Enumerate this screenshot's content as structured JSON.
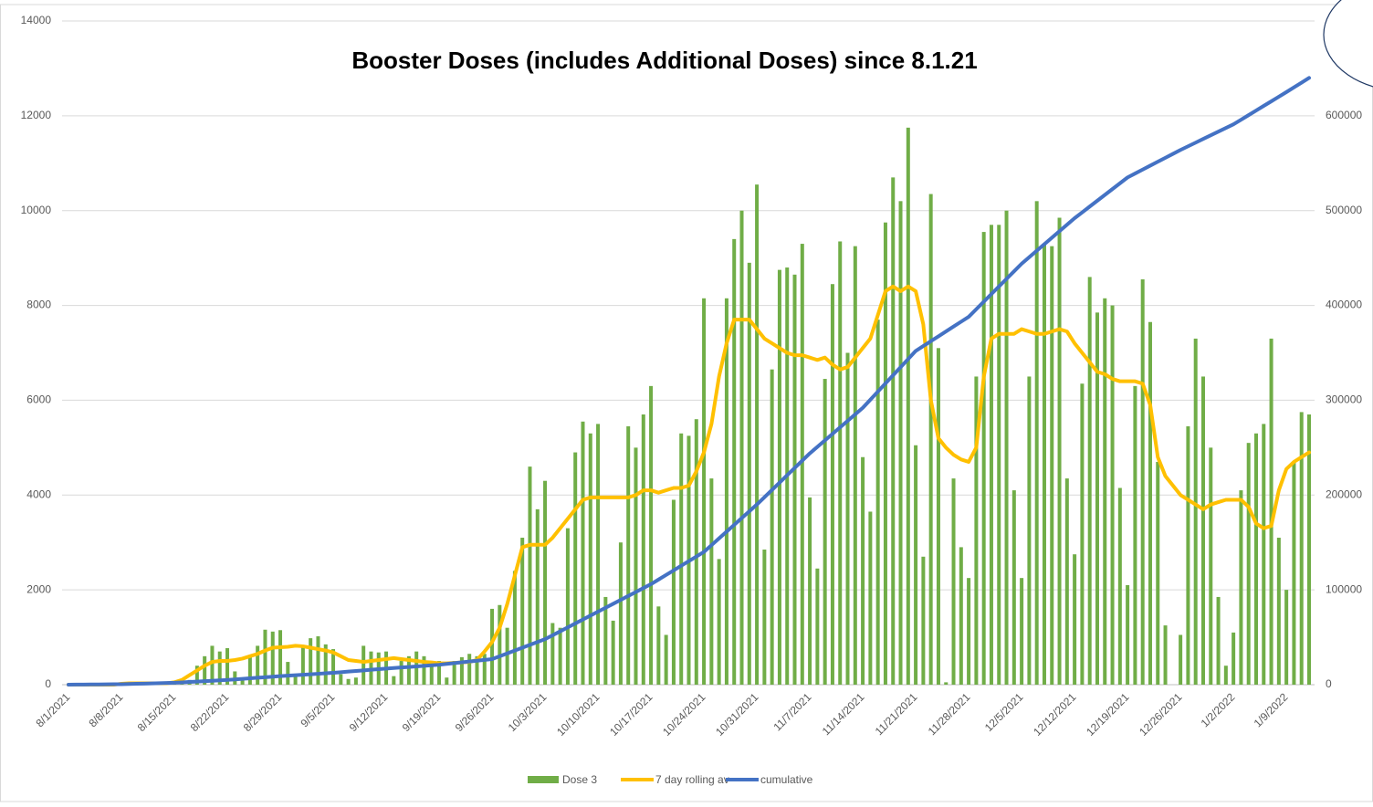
{
  "chart_data": {
    "type": "bar",
    "title": "Booster Doses (includes Additional Doses) since 8.1.21",
    "categories": [
      "8/1/2021",
      null,
      null,
      null,
      null,
      null,
      null,
      "8/8/2021",
      null,
      null,
      null,
      null,
      null,
      null,
      "8/15/2021",
      null,
      null,
      null,
      null,
      null,
      null,
      "8/22/2021",
      null,
      null,
      null,
      null,
      null,
      null,
      "8/29/2021",
      null,
      null,
      null,
      null,
      null,
      null,
      "9/5/2021",
      null,
      null,
      null,
      null,
      null,
      null,
      "9/12/2021",
      null,
      null,
      null,
      null,
      null,
      null,
      "9/19/2021",
      null,
      null,
      null,
      null,
      null,
      null,
      "9/26/2021",
      null,
      null,
      null,
      null,
      null,
      null,
      "10/3/2021",
      null,
      null,
      null,
      null,
      null,
      null,
      "10/10/2021",
      null,
      null,
      null,
      null,
      null,
      null,
      "10/17/2021",
      null,
      null,
      null,
      null,
      null,
      null,
      "10/24/2021",
      null,
      null,
      null,
      null,
      null,
      null,
      "10/31/2021",
      null,
      null,
      null,
      null,
      null,
      null,
      "11/7/2021",
      null,
      null,
      null,
      null,
      null,
      null,
      "11/14/2021",
      null,
      null,
      null,
      null,
      null,
      null,
      "11/21/2021",
      null,
      null,
      null,
      null,
      null,
      null,
      "11/28/2021",
      null,
      null,
      null,
      null,
      null,
      null,
      "12/5/2021",
      null,
      null,
      null,
      null,
      null,
      null,
      "12/12/2021",
      null,
      null,
      null,
      null,
      null,
      null,
      "12/19/2021",
      null,
      null,
      null,
      null,
      null,
      null,
      "12/26/2021",
      null,
      null,
      null,
      null,
      null,
      null,
      "1/2/2022",
      null,
      null,
      null,
      null,
      null,
      null,
      "1/9/2022",
      null,
      null,
      null
    ],
    "series": [
      {
        "name": "Dose 3",
        "type": "bar",
        "axis": "y",
        "color": "#70ad47",
        "values": [
          0,
          0,
          0,
          0,
          0,
          0,
          0,
          0,
          0,
          30,
          30,
          30,
          30,
          30,
          30,
          30,
          100,
          400,
          600,
          820,
          700,
          770,
          280,
          120,
          600,
          820,
          1160,
          1120,
          1150,
          480,
          200,
          800,
          980,
          1020,
          850,
          750,
          220,
          120,
          150,
          820,
          700,
          680,
          700,
          180,
          500,
          600,
          700,
          600,
          500,
          500,
          150,
          500,
          580,
          650,
          600,
          650,
          1600,
          1680,
          1200,
          2400,
          3100,
          4600,
          3700,
          4300,
          1300,
          1200,
          3300,
          4900,
          5550,
          5300,
          5500,
          1850,
          1350,
          3000,
          5450,
          5000,
          5700,
          6300,
          1650,
          1050,
          3900,
          5300,
          5250,
          5600,
          8150,
          4350,
          2650,
          8150,
          9400,
          10000,
          8900,
          10550,
          2850,
          6650,
          8750,
          8800,
          8650,
          9300,
          3950,
          2450,
          6450,
          8450,
          9350,
          7000,
          9250,
          4800,
          3650,
          7700,
          9750,
          10700,
          10200,
          11750,
          5050,
          2700,
          10350,
          7100,
          50,
          4350,
          2900,
          2250,
          6500,
          9550,
          9700,
          9700,
          10000,
          4100,
          2250,
          6500,
          10200,
          9300,
          9250,
          9850,
          4350,
          2750,
          6350,
          8600,
          7850,
          8150,
          8000,
          4150,
          2100,
          6300,
          8550,
          7650,
          4700,
          1250,
          0,
          1050,
          5450,
          7300,
          6500,
          5000,
          1850,
          400,
          1100,
          4100,
          5100,
          5300,
          5500,
          7300,
          3100,
          2000,
          4700,
          5750,
          5700
        ]
      },
      {
        "name": "7 day rolling av",
        "type": "line",
        "axis": "y",
        "color": "#ffc000",
        "values": [
          0,
          0,
          0,
          0,
          0,
          0,
          0,
          20,
          30,
          30,
          30,
          30,
          30,
          30,
          50,
          100,
          200,
          300,
          400,
          480,
          500,
          500,
          520,
          550,
          600,
          650,
          720,
          780,
          790,
          800,
          820,
          810,
          780,
          750,
          720,
          680,
          600,
          520,
          500,
          480,
          500,
          520,
          540,
          560,
          540,
          520,
          500,
          480,
          470,
          450,
          450,
          460,
          470,
          480,
          520,
          700,
          900,
          1200,
          1700,
          2300,
          2900,
          2950,
          2950,
          2950,
          3100,
          3300,
          3500,
          3700,
          3900,
          3950,
          3950,
          3950,
          3950,
          3950,
          3950,
          4000,
          4100,
          4100,
          4050,
          4100,
          4150,
          4150,
          4200,
          4500,
          4900,
          5500,
          6500,
          7200,
          7700,
          7700,
          7700,
          7500,
          7300,
          7200,
          7100,
          7000,
          6950,
          6950,
          6900,
          6850,
          6900,
          6750,
          6650,
          6700,
          6900,
          7100,
          7300,
          7800,
          8300,
          8400,
          8300,
          8400,
          8300,
          7600,
          6000,
          5200,
          5000,
          4850,
          4750,
          4700,
          5000,
          6500,
          7300,
          7400,
          7400,
          7400,
          7500,
          7450,
          7400,
          7400,
          7450,
          7500,
          7450,
          7200,
          7000,
          6800,
          6600,
          6550,
          6450,
          6400,
          6400,
          6400,
          6350,
          5900,
          4800,
          4400,
          4200,
          4000,
          3900,
          3800,
          3700,
          3800,
          3850,
          3900,
          3900,
          3900,
          3750,
          3400,
          3300,
          3350,
          4100,
          4550,
          4700,
          4800,
          4900
        ]
      },
      {
        "name": "cumulative",
        "type": "line",
        "axis": "y2",
        "color": "#4472c4",
        "values": [
          0,
          70,
          140,
          210,
          290,
          360,
          430,
          500,
          710,
          930,
          1140,
          1360,
          1570,
          1790,
          2000,
          2430,
          2860,
          3290,
          3710,
          4140,
          4570,
          5000,
          5570,
          6140,
          6710,
          7290,
          7860,
          8430,
          9000,
          9500,
          10000,
          10500,
          11000,
          11500,
          12000,
          12500,
          13140,
          13790,
          14430,
          15070,
          15710,
          16360,
          17000,
          17570,
          18140,
          18710,
          19290,
          19860,
          20430,
          21000,
          21860,
          22710,
          23570,
          24430,
          25290,
          26140,
          27000,
          30000,
          33000,
          36000,
          39000,
          42000,
          45000,
          48000,
          52140,
          56290,
          60430,
          64570,
          68710,
          72860,
          77000,
          81140,
          85290,
          89430,
          93570,
          97710,
          101860,
          106000,
          110860,
          115710,
          120570,
          125430,
          130290,
          135140,
          140000,
          147140,
          154290,
          161430,
          168570,
          175710,
          182860,
          190000,
          197710,
          205430,
          213140,
          220860,
          228570,
          236290,
          244000,
          250860,
          257710,
          264570,
          271430,
          278290,
          285140,
          292000,
          300570,
          309140,
          317710,
          326290,
          334860,
          343430,
          352000,
          357140,
          362290,
          367430,
          372570,
          377710,
          382860,
          388000,
          396000,
          404000,
          412000,
          420000,
          428000,
          436000,
          444000,
          450860,
          457710,
          464570,
          471430,
          478290,
          485140,
          492000,
          498140,
          504290,
          510430,
          516570,
          522710,
          528860,
          535000,
          539140,
          543290,
          547430,
          551570,
          555710,
          559860,
          564000,
          567860,
          571710,
          575570,
          579430,
          583290,
          587140,
          591000,
          595860,
          600710,
          605570,
          610430,
          615290,
          620140,
          625000,
          630000,
          635000,
          640000
        ]
      }
    ],
    "ylim": [
      0,
      14000
    ],
    "yticks": [
      0,
      2000,
      4000,
      6000,
      8000,
      10000,
      12000,
      14000
    ],
    "y2lim": [
      0,
      700000
    ],
    "y2ticks": [
      0,
      100000,
      200000,
      300000,
      400000,
      500000,
      600000
    ],
    "grid": true,
    "legend": "bottom"
  }
}
